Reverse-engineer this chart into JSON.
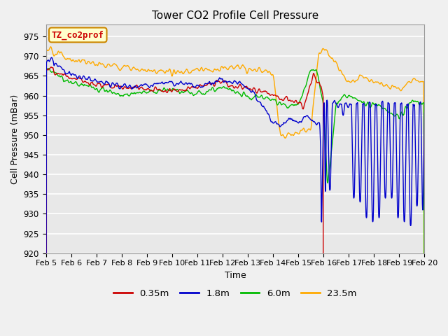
{
  "title": "Tower CO2 Profile Cell Pressure",
  "ylabel": "Cell Pressure (mBar)",
  "xlabel": "Time",
  "ylim": [
    920,
    978
  ],
  "yticks": [
    920,
    925,
    930,
    935,
    940,
    945,
    950,
    955,
    960,
    965,
    970,
    975
  ],
  "xtick_labels": [
    "Feb 5",
    "Feb 6",
    "Feb 7",
    "Feb 8",
    "Feb 9",
    "Feb 10",
    "Feb 11",
    "Feb 12",
    "Feb 13",
    "Feb 14",
    "Feb 15",
    "Feb 16",
    "Feb 17",
    "Feb 18",
    "Feb 19",
    "Feb 20"
  ],
  "legend_labels": [
    "0.35m",
    "1.8m",
    "6.0m",
    "23.5m"
  ],
  "colors": {
    "red": "#cc0000",
    "blue": "#0000cc",
    "green": "#00bb00",
    "orange": "#ffaa00"
  },
  "annotation_text": "TZ_co2prof",
  "annotation_color": "#cc0000",
  "annotation_bg": "#ffffcc",
  "annotation_edge": "#cc8800",
  "plot_bg": "#e8e8e8",
  "fig_bg": "#f0f0f0",
  "grid_color": "#ffffff",
  "title_fontsize": 11,
  "label_fontsize": 9,
  "tick_fontsize": 8.5
}
